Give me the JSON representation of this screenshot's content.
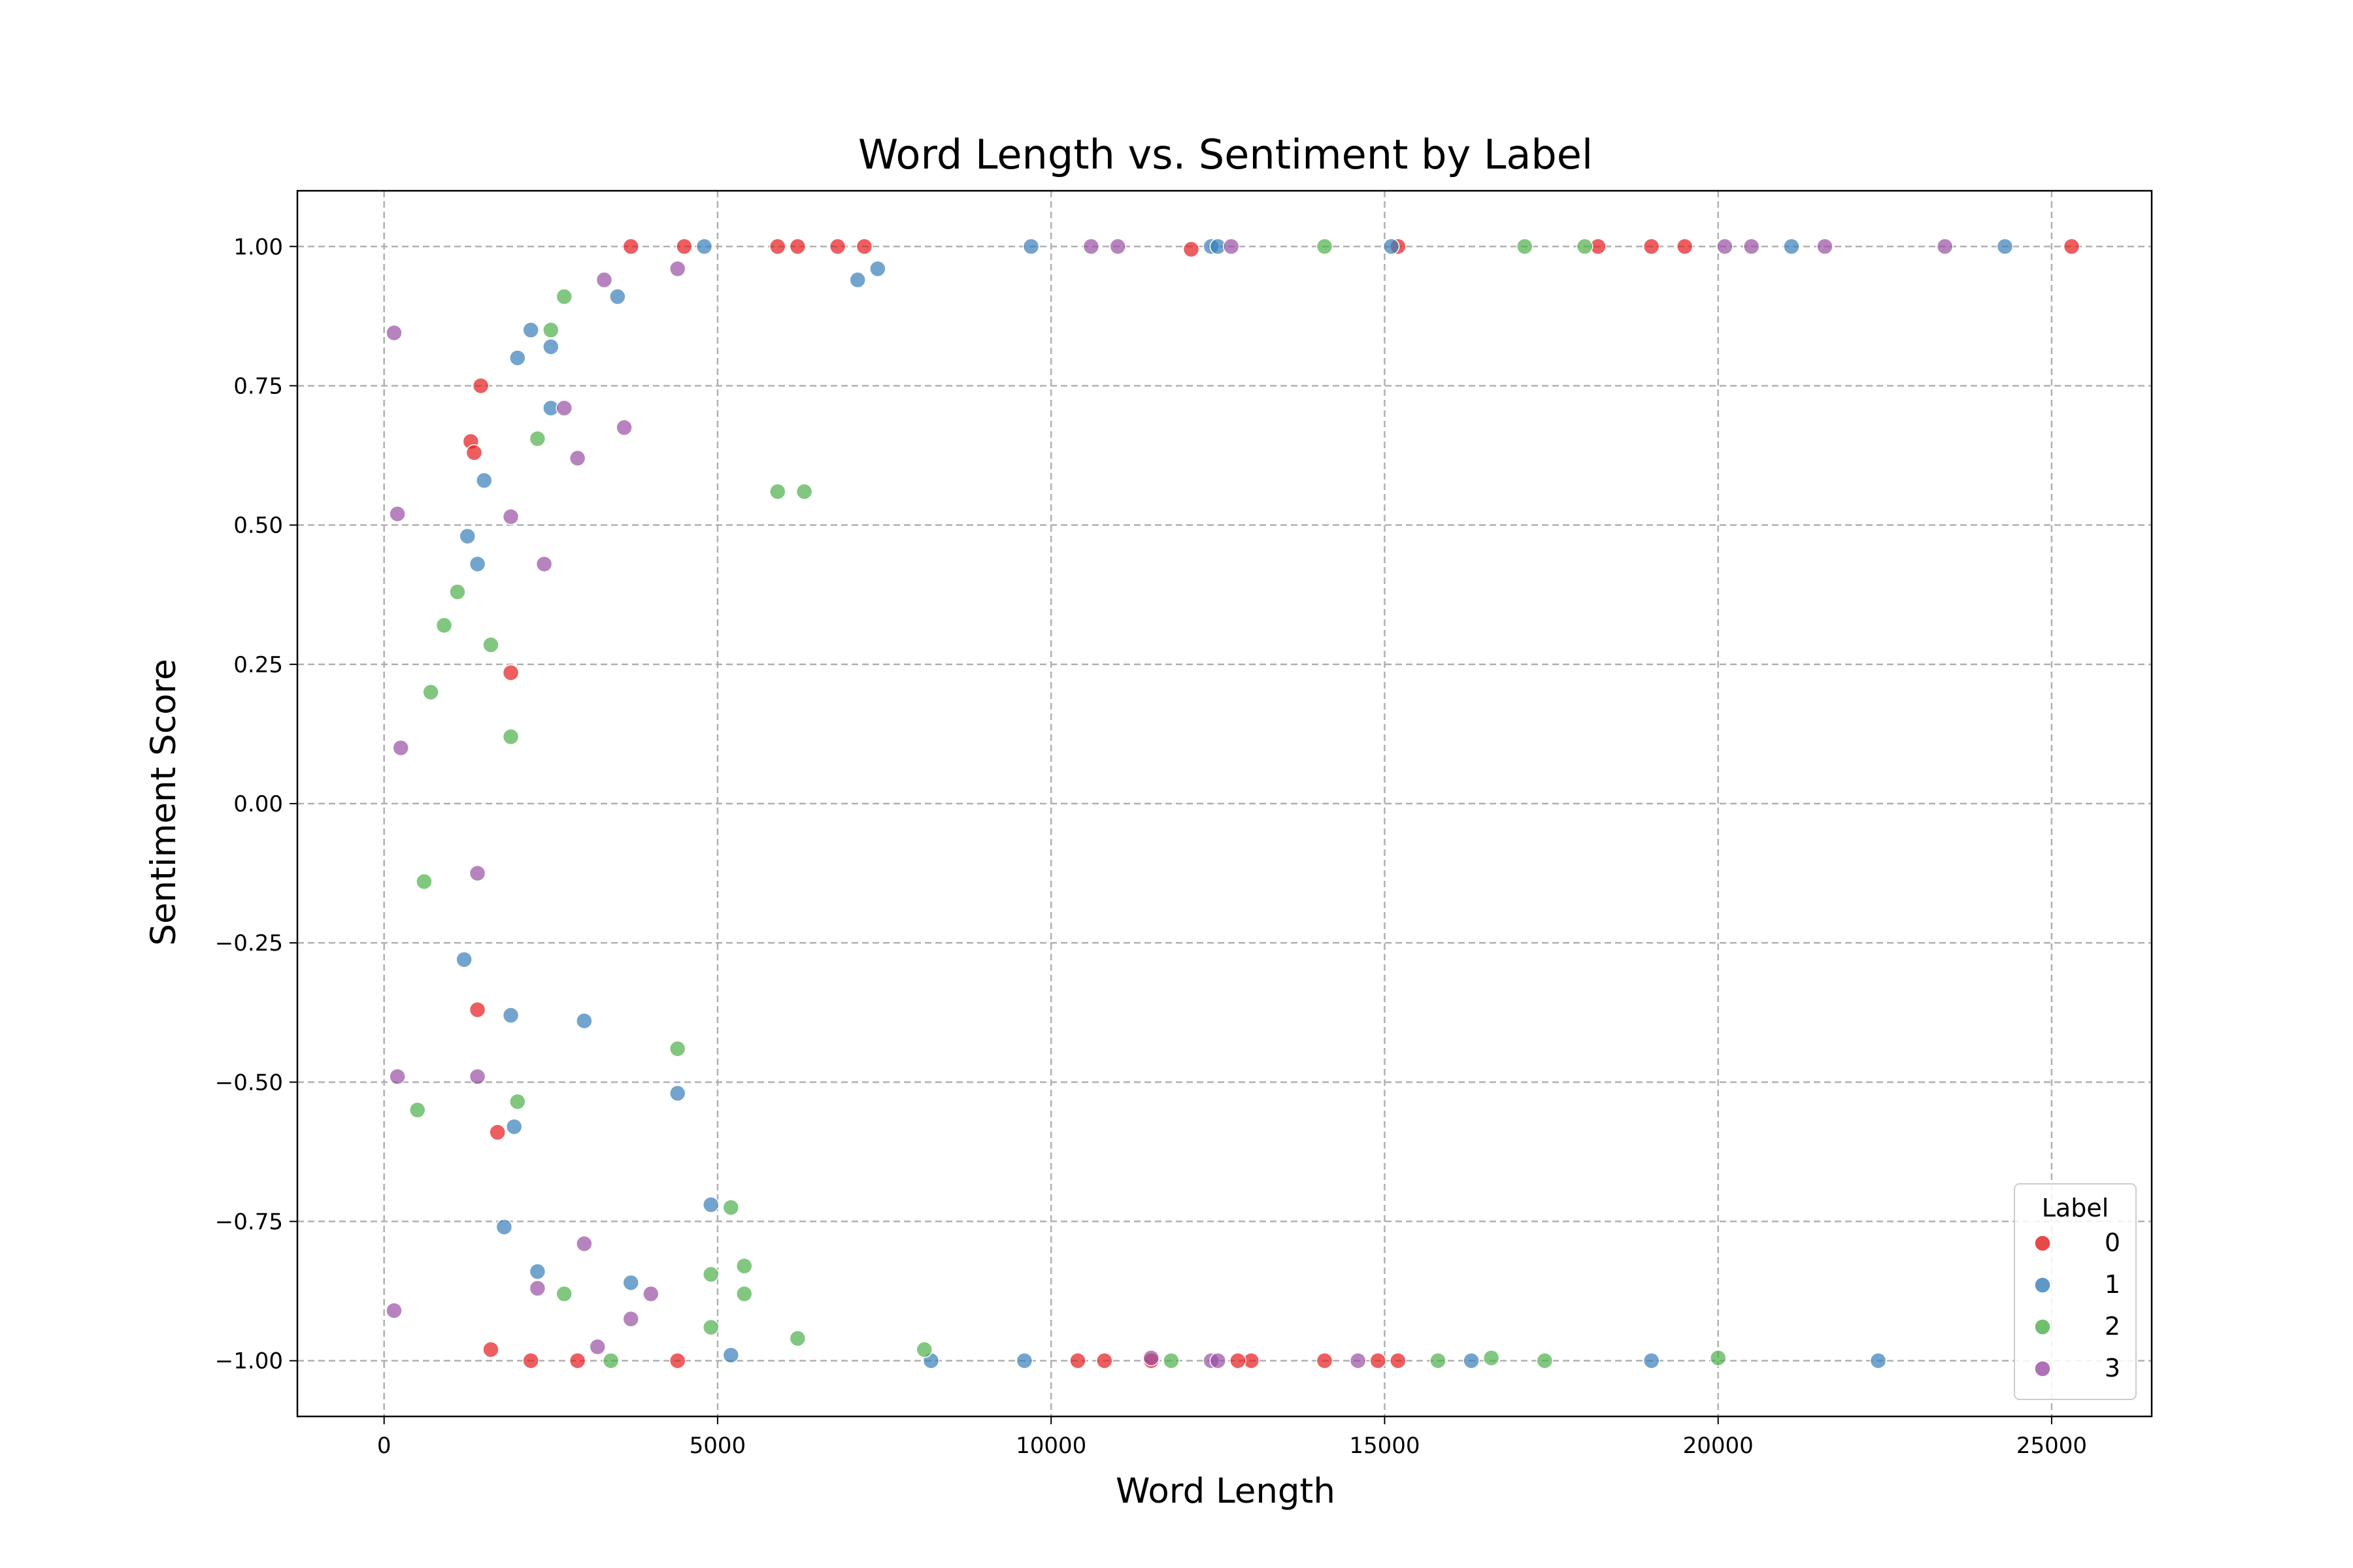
{
  "chart_data": {
    "type": "scatter",
    "title": "Word Length vs. Sentiment by Label",
    "xlabel": "Word Length",
    "ylabel": "Sentiment Score",
    "xlim": [
      -1300,
      26500
    ],
    "ylim": [
      -1.1,
      1.1
    ],
    "xticks": [
      0,
      5000,
      10000,
      15000,
      20000,
      25000
    ],
    "xtick_labels": [
      "0",
      "5000",
      "10000",
      "15000",
      "20000",
      "25000"
    ],
    "yticks": [
      -1.0,
      -0.75,
      -0.5,
      -0.25,
      0.0,
      0.25,
      0.5,
      0.75,
      1.0
    ],
    "ytick_labels": [
      "−1.00",
      "−0.75",
      "−0.50",
      "−0.25",
      "0.00",
      "0.25",
      "0.50",
      "0.75",
      "1.00"
    ],
    "grid": true,
    "legend": {
      "title": "Label",
      "placement": "lower-right"
    },
    "series": [
      {
        "name": "0",
        "color": "#e41a1c",
        "points": [
          [
            12100,
            0.995
          ],
          [
            15200,
            1.0
          ],
          [
            18200,
            1.0
          ],
          [
            19000,
            1.0
          ],
          [
            19500,
            1.0
          ],
          [
            25300,
            1.0
          ],
          [
            1900,
            0.235
          ],
          [
            1300,
            0.65
          ],
          [
            1350,
            0.63
          ],
          [
            1450,
            0.75
          ],
          [
            1700,
            -0.59
          ],
          [
            1400,
            -0.37
          ],
          [
            10800,
            -1.0
          ],
          [
            11500,
            -1.0
          ],
          [
            13000,
            -1.0
          ],
          [
            14100,
            -1.0
          ],
          [
            14900,
            -1.0
          ],
          [
            15200,
            -1.0
          ],
          [
            12800,
            -1.0
          ],
          [
            10400,
            -1.0
          ],
          [
            4400,
            -1.0
          ],
          [
            2900,
            -1.0
          ],
          [
            2200,
            -1.0
          ],
          [
            1600,
            -0.98
          ],
          [
            3700,
            1.0
          ],
          [
            4500,
            1.0
          ],
          [
            5900,
            1.0
          ],
          [
            6200,
            1.0
          ],
          [
            6800,
            1.0
          ],
          [
            7200,
            1.0
          ]
        ]
      },
      {
        "name": "1",
        "color": "#377eb8",
        "points": [
          [
            7100,
            0.94
          ],
          [
            7400,
            0.96
          ],
          [
            12400,
            1.0
          ],
          [
            12500,
            1.0
          ],
          [
            15100,
            1.0
          ],
          [
            21100,
            1.0
          ],
          [
            24300,
            1.0
          ],
          [
            9700,
            1.0
          ],
          [
            4800,
            1.0
          ],
          [
            2000,
            0.8
          ],
          [
            2200,
            0.85
          ],
          [
            2500,
            0.82
          ],
          [
            2500,
            0.71
          ],
          [
            3500,
            0.91
          ],
          [
            1500,
            0.58
          ],
          [
            1400,
            0.43
          ],
          [
            1250,
            0.48
          ],
          [
            1200,
            -0.28
          ],
          [
            1900,
            -0.38
          ],
          [
            3000,
            -0.39
          ],
          [
            4400,
            -0.52
          ],
          [
            4900,
            -0.72
          ],
          [
            1950,
            -0.58
          ],
          [
            1800,
            -0.76
          ],
          [
            2300,
            -0.84
          ],
          [
            3700,
            -0.86
          ],
          [
            16300,
            -1.0
          ],
          [
            19000,
            -1.0
          ],
          [
            22400,
            -1.0
          ],
          [
            8200,
            -1.0
          ],
          [
            9600,
            -1.0
          ],
          [
            5200,
            -0.99
          ]
        ]
      },
      {
        "name": "2",
        "color": "#4daf4a",
        "points": [
          [
            5900,
            0.56
          ],
          [
            6300,
            0.56
          ],
          [
            1600,
            0.285
          ],
          [
            1900,
            0.12
          ],
          [
            2000,
            -0.535
          ],
          [
            4400,
            -0.44
          ],
          [
            5200,
            -0.725
          ],
          [
            4900,
            -0.845
          ],
          [
            5400,
            -0.83
          ],
          [
            5400,
            -0.88
          ],
          [
            4900,
            -0.94
          ],
          [
            2700,
            -0.88
          ],
          [
            2300,
            0.655
          ],
          [
            2500,
            0.85
          ],
          [
            2700,
            0.91
          ],
          [
            14100,
            1.0
          ],
          [
            17100,
            1.0
          ],
          [
            18000,
            1.0
          ],
          [
            15800,
            -1.0
          ],
          [
            16600,
            -0.995
          ],
          [
            17400,
            -1.0
          ],
          [
            20000,
            -0.995
          ],
          [
            11800,
            -1.0
          ],
          [
            6200,
            -0.96
          ],
          [
            8100,
            -0.98
          ],
          [
            3400,
            -1.0
          ],
          [
            900,
            0.32
          ],
          [
            1100,
            0.38
          ],
          [
            700,
            0.2
          ],
          [
            600,
            -0.14
          ],
          [
            500,
            -0.55
          ]
        ]
      },
      {
        "name": "3",
        "color": "#984ea3",
        "points": [
          [
            2400,
            0.43
          ],
          [
            1900,
            0.515
          ],
          [
            2900,
            0.62
          ],
          [
            2700,
            0.71
          ],
          [
            3600,
            0.675
          ],
          [
            4400,
            0.96
          ],
          [
            3300,
            0.94
          ],
          [
            10600,
            1.0
          ],
          [
            11000,
            1.0
          ],
          [
            12700,
            1.0
          ],
          [
            20100,
            1.0
          ],
          [
            20500,
            1.0
          ],
          [
            21600,
            1.0
          ],
          [
            23400,
            1.0
          ],
          [
            1400,
            -0.125
          ],
          [
            1400,
            -0.49
          ],
          [
            3000,
            -0.79
          ],
          [
            2300,
            -0.87
          ],
          [
            3700,
            -0.925
          ],
          [
            4000,
            -0.88
          ],
          [
            3200,
            -0.975
          ],
          [
            12400,
            -1.0
          ],
          [
            12500,
            -1.0
          ],
          [
            14600,
            -1.0
          ],
          [
            11500,
            -0.995
          ],
          [
            150,
            0.845
          ],
          [
            200,
            0.52
          ],
          [
            250,
            0.1
          ],
          [
            200,
            -0.49
          ],
          [
            150,
            -0.91
          ]
        ]
      }
    ]
  }
}
